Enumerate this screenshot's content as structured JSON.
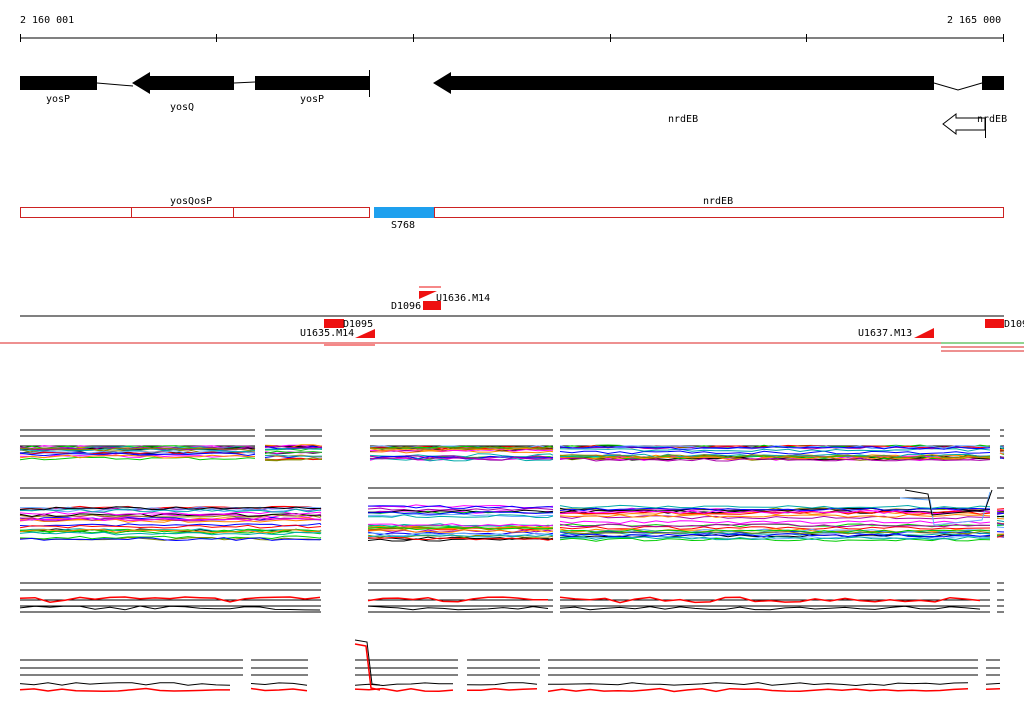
{
  "ruler": {
    "start_label": "2 160 001",
    "end_label": "2 165 000"
  },
  "genes": {
    "yosP_a": "yosP",
    "yosQ": "yosQ",
    "yosP_b": "yosP",
    "nrdEB_main": "nrdEB",
    "nrdEB_right": "nrdEB"
  },
  "transcripts": {
    "left_labels": "yosQosP",
    "nrdEB": "nrdEB",
    "segment": "S768",
    "segment_color": "#1ea0ee"
  },
  "features": {
    "d1096": "D1096",
    "u1636": "U1636.M14",
    "d1095": "D1095",
    "u1635": "U1635.M14",
    "u1637": "U1637.M13",
    "d109_right": "D109",
    "feature_color": "#ee1111"
  },
  "expression": {
    "series_palette": [
      "#000000",
      "#ff00ff",
      "#00cc00",
      "#0000ff",
      "#ff8800",
      "#00aaaa",
      "#aa00aa",
      "#888800",
      "#ff0000",
      "#66aaff"
    ],
    "accent_red": "#ff0000"
  }
}
